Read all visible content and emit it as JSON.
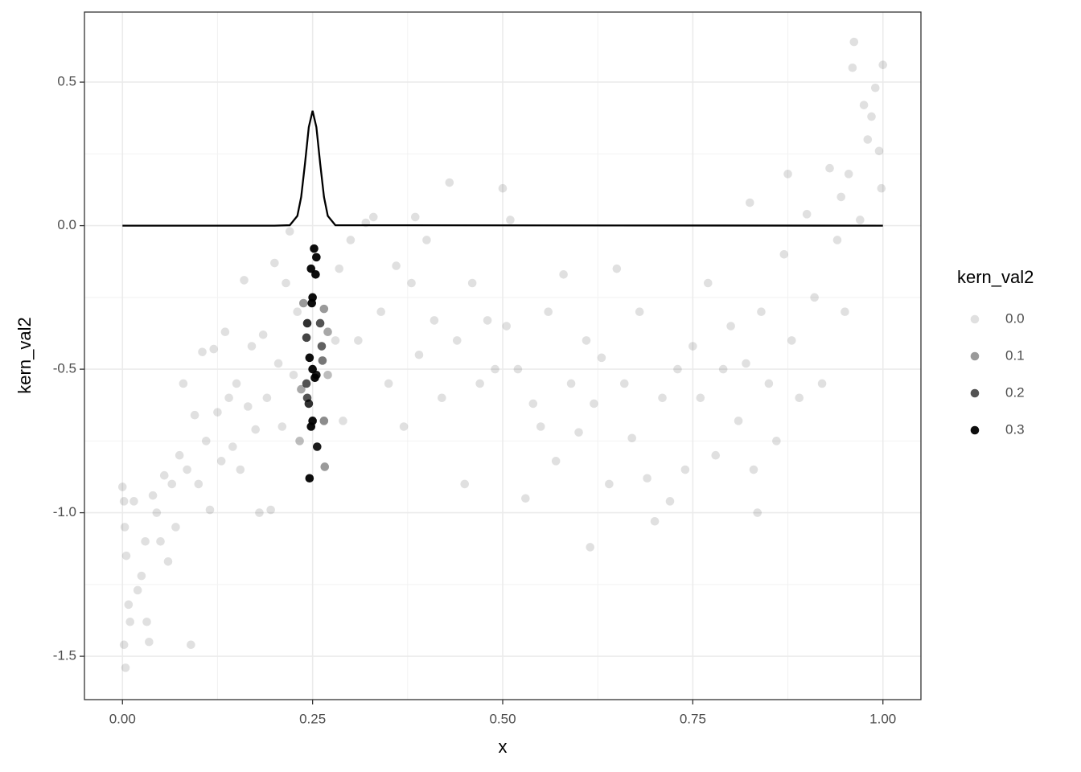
{
  "chart_data": {
    "type": "scatter",
    "x_label": "x",
    "y_label": "kern_val2",
    "xlim": [
      -0.05,
      1.05
    ],
    "ylim": [
      -1.651,
      0.744
    ],
    "xticks": [
      {
        "value": 0,
        "label": "0.00"
      },
      {
        "value": 0.25,
        "label": "0.25"
      },
      {
        "value": 0.5,
        "label": "0.50"
      },
      {
        "value": 0.75,
        "label": "0.75"
      },
      {
        "value": 1,
        "label": "1.00"
      }
    ],
    "yticks": [
      -1.5,
      {
        "value": -1,
        "label": "-1.0"
      },
      -0.5,
      {
        "value": 0,
        "label": "0.0"
      },
      0.5
    ],
    "xminorticks": [
      0.125,
      0.375,
      0.625,
      0.875
    ],
    "yminorticks": [
      -1.25,
      -0.75,
      -0.25,
      0.25
    ],
    "grid": true,
    "legend": {
      "title": "kern_val2",
      "position": "right",
      "breaks": [
        {
          "value": 0,
          "label": "0.0"
        },
        0.1,
        0.2,
        0.3
      ]
    },
    "points": {
      "color": "#000000",
      "x": [
        0,
        0.002,
        0.003,
        0.005,
        0.008,
        0.01,
        0.002,
        0.004,
        0.015,
        0.02,
        0.025,
        0.03,
        0.032,
        0.035,
        0.04,
        0.045,
        0.05,
        0.055,
        0.06,
        0.065,
        0.07,
        0.075,
        0.08,
        0.085,
        0.09,
        0.095,
        0.1,
        0.105,
        0.11,
        0.115,
        0.12,
        0.125,
        0.13,
        0.135,
        0.14,
        0.145,
        0.15,
        0.155,
        0.16,
        0.165,
        0.17,
        0.175,
        0.18,
        0.185,
        0.19,
        0.195,
        0.2,
        0.205,
        0.21,
        0.215,
        0.22,
        0.225,
        0.23,
        0.28,
        0.285,
        0.29,
        0.3,
        0.31,
        0.32,
        0.33,
        0.34,
        0.35,
        0.36,
        0.37,
        0.38,
        0.385,
        0.39,
        0.4,
        0.41,
        0.42,
        0.43,
        0.44,
        0.45,
        0.46,
        0.47,
        0.48,
        0.49,
        0.5,
        0.505,
        0.51,
        0.52,
        0.53,
        0.54,
        0.55,
        0.56,
        0.57,
        0.58,
        0.59,
        0.6,
        0.61,
        0.615,
        0.62,
        0.63,
        0.64,
        0.65,
        0.66,
        0.67,
        0.68,
        0.69,
        0.7,
        0.71,
        0.72,
        0.73,
        0.74,
        0.75,
        0.76,
        0.77,
        0.78,
        0.79,
        0.8,
        0.81,
        0.82,
        0.825,
        0.83,
        0.835,
        0.84,
        0.85,
        0.86,
        0.87,
        0.875,
        0.88,
        0.89,
        0.9,
        0.91,
        0.92,
        0.93,
        0.94,
        0.945,
        0.95,
        0.955,
        0.96,
        0.962,
        0.97,
        0.975,
        0.98,
        0.985,
        0.99,
        0.995,
        1,
        0.998,
        0.252,
        0.255,
        0.254,
        0.248,
        0.25,
        0.249,
        0.243,
        0.242,
        0.246,
        0.25,
        0.255,
        0.253,
        0.242,
        0.243,
        0.245,
        0.25,
        0.248,
        0.256,
        0.246,
        0.26,
        0.262,
        0.263,
        0.265,
        0.266,
        0.265,
        0.27,
        0.238,
        0.235,
        0.233,
        0.27
      ],
      "values": [
        -0.91,
        -0.96,
        -1.05,
        -1.15,
        -1.32,
        -1.38,
        -1.46,
        -1.54,
        -0.96,
        -1.27,
        -1.22,
        -1.1,
        -1.38,
        -1.45,
        -0.94,
        -1.0,
        -1.1,
        -0.87,
        -1.17,
        -0.9,
        -1.05,
        -0.8,
        -0.55,
        -0.85,
        -1.46,
        -0.66,
        -0.9,
        -0.44,
        -0.75,
        -0.99,
        -0.43,
        -0.65,
        -0.82,
        -0.37,
        -0.6,
        -0.77,
        -0.55,
        -0.85,
        -0.19,
        -0.63,
        -0.42,
        -0.71,
        -1.0,
        -0.38,
        -0.6,
        -0.99,
        -0.13,
        -0.48,
        -0.7,
        -0.2,
        -0.02,
        -0.52,
        -0.3,
        -0.4,
        -0.15,
        -0.68,
        -0.05,
        -0.4,
        0.01,
        0.03,
        -0.3,
        -0.55,
        -0.14,
        -0.7,
        -0.2,
        0.03,
        -0.45,
        -0.05,
        -0.33,
        -0.6,
        0.15,
        -0.4,
        -0.9,
        -0.2,
        -0.55,
        -0.33,
        -0.5,
        0.13,
        -0.35,
        0.02,
        -0.5,
        -0.95,
        -0.62,
        -0.7,
        -0.3,
        -0.82,
        -0.17,
        -0.55,
        -0.72,
        -0.4,
        -1.12,
        -0.62,
        -0.46,
        -0.9,
        -0.15,
        -0.55,
        -0.74,
        -0.3,
        -0.88,
        -1.03,
        -0.6,
        -0.96,
        -0.5,
        -0.85,
        -0.42,
        -0.6,
        -0.2,
        -0.8,
        -0.5,
        -0.35,
        -0.68,
        -0.48,
        0.08,
        -0.85,
        -1.0,
        -0.3,
        -0.55,
        -0.75,
        -0.1,
        0.18,
        -0.4,
        -0.6,
        0.04,
        -0.25,
        -0.55,
        0.2,
        -0.05,
        0.1,
        -0.3,
        0.18,
        0.55,
        0.64,
        0.02,
        0.42,
        0.3,
        0.38,
        0.48,
        0.26,
        0.56,
        0.13,
        -0.08,
        -0.11,
        -0.17,
        -0.15,
        -0.25,
        -0.27,
        -0.34,
        -0.39,
        -0.46,
        -0.5,
        -0.52,
        -0.53,
        -0.55,
        -0.6,
        -0.62,
        -0.68,
        -0.7,
        -0.77,
        -0.88,
        -0.34,
        -0.42,
        -0.47,
        -0.68,
        -0.84,
        -0.29,
        -0.37,
        -0.27,
        -0.57,
        -0.75,
        -0.52
      ],
      "kern_val2": [
        0,
        0,
        0,
        0,
        0,
        0,
        0,
        0,
        0,
        0,
        0,
        0,
        0,
        0,
        0,
        0,
        0,
        0,
        0,
        0,
        0,
        0,
        0,
        0,
        0,
        0,
        0,
        0,
        0,
        0,
        0,
        0,
        0,
        0,
        0,
        0,
        0,
        0,
        0,
        0,
        0,
        0,
        0,
        0,
        0,
        0,
        0,
        0,
        0,
        0,
        0,
        0,
        0,
        0,
        0,
        0,
        0,
        0,
        0,
        0,
        0,
        0,
        0,
        0,
        0,
        0,
        0,
        0,
        0,
        0,
        0,
        0,
        0,
        0,
        0,
        0,
        0,
        0,
        0,
        0,
        0,
        0,
        0,
        0,
        0,
        0,
        0,
        0,
        0,
        0,
        0,
        0,
        0,
        0,
        0,
        0,
        0,
        0,
        0,
        0,
        0,
        0,
        0,
        0,
        0,
        0,
        0,
        0,
        0,
        0,
        0,
        0,
        0,
        0,
        0,
        0,
        0,
        0,
        0,
        0,
        0,
        0,
        0,
        0,
        0,
        0,
        0,
        0,
        0,
        0,
        0,
        0,
        0,
        0,
        0,
        0,
        0,
        0,
        0,
        0,
        0.3,
        0.3,
        0.3,
        0.3,
        0.3,
        0.3,
        0.25,
        0.22,
        0.3,
        0.3,
        0.28,
        0.3,
        0.2,
        0.2,
        0.25,
        0.3,
        0.3,
        0.28,
        0.3,
        0.2,
        0.18,
        0.15,
        0.12,
        0.1,
        0.1,
        0.08,
        0.1,
        0.08,
        0.05,
        0.05
      ]
    },
    "kernel_line": {
      "color": "#000000",
      "x": [
        0,
        0.2,
        0.22,
        0.23,
        0.235,
        0.24,
        0.245,
        0.25,
        0.255,
        0.26,
        0.265,
        0.27,
        0.28,
        1
      ],
      "values": [
        0,
        0,
        0.0015,
        0.034,
        0.0998,
        0.216,
        0.343,
        0.4,
        0.343,
        0.216,
        0.0998,
        0.034,
        0.0015,
        0
      ]
    }
  }
}
